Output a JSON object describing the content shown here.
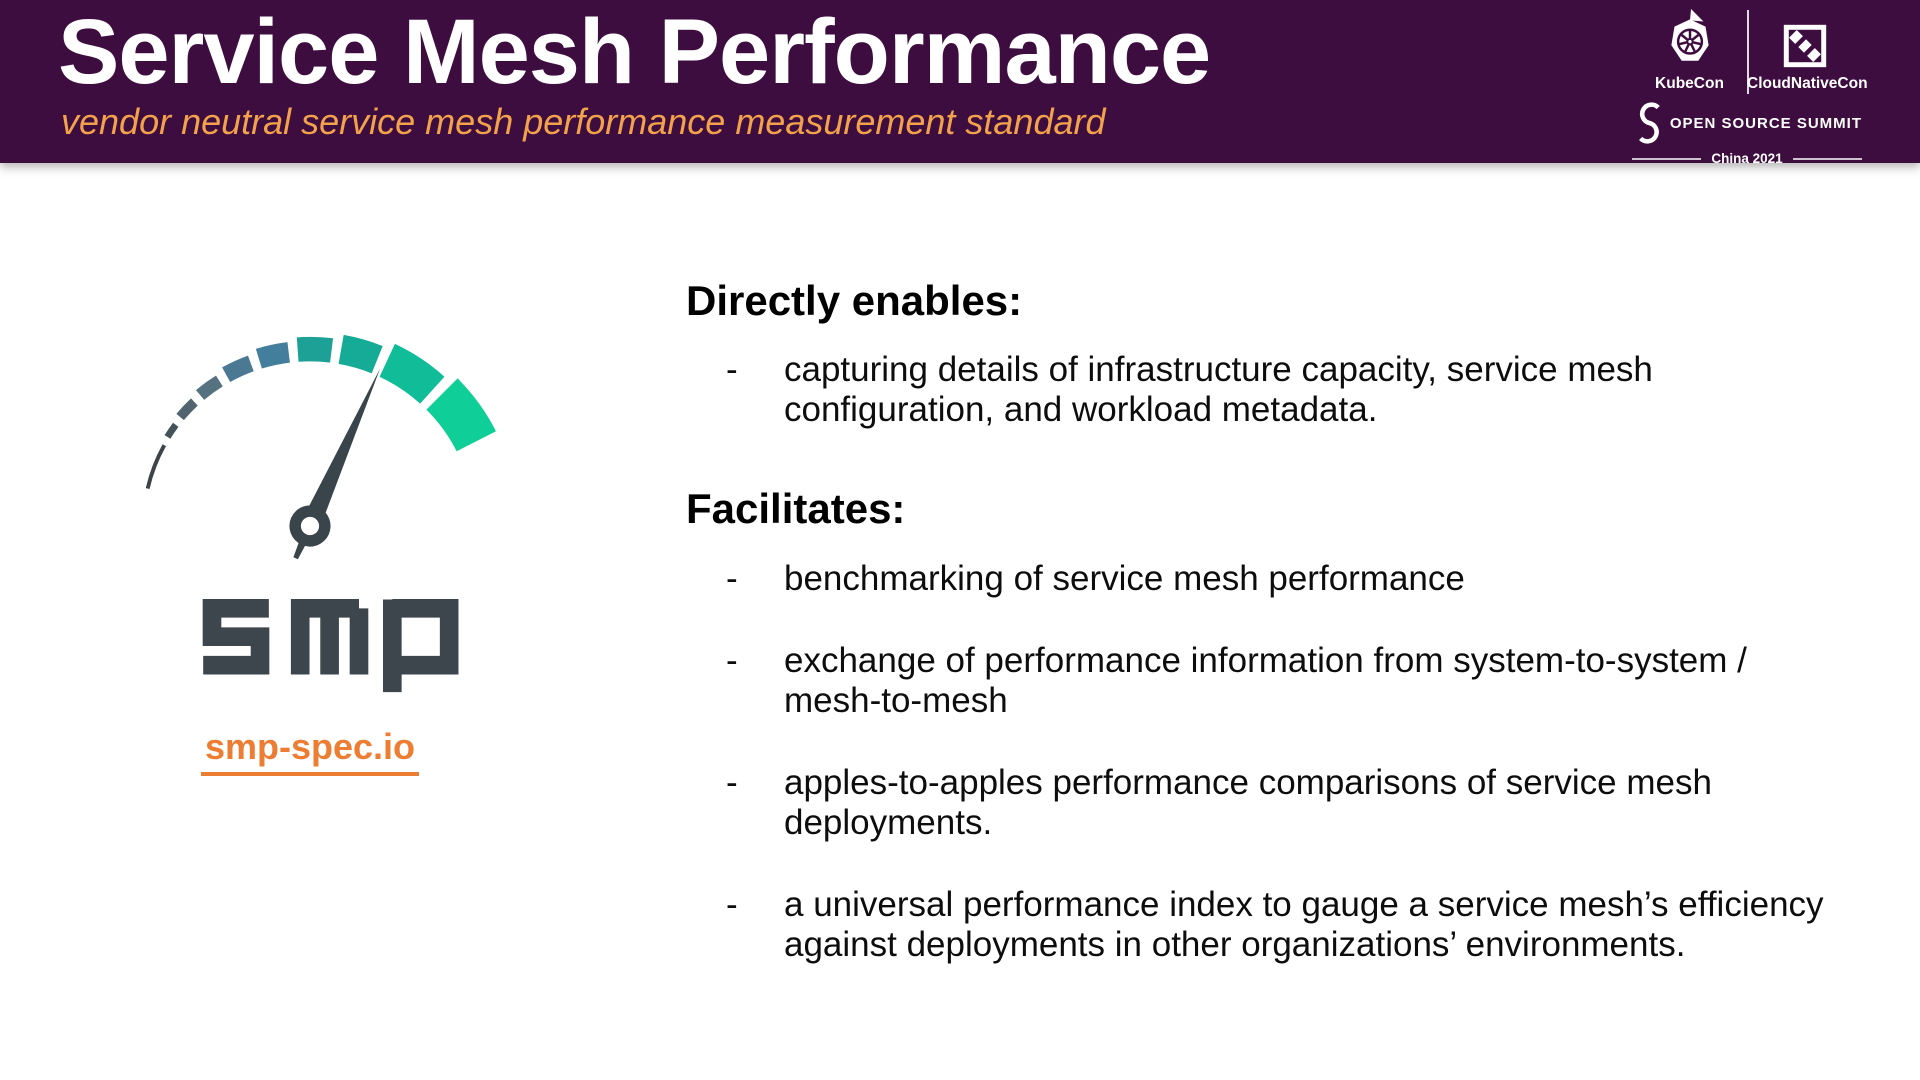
{
  "colors": {
    "header_bg": "#3e0d40",
    "header_title": "#ffffff",
    "subtitle": "#f2a24b",
    "link": "#ec7d33",
    "body_text": "#0d0d0d",
    "logo_ink": "#3a444b",
    "event_text": "#ffffff"
  },
  "header": {
    "title": "Service Mesh Performance",
    "subtitle": "vendor neutral service mesh performance measurement standard"
  },
  "event": {
    "kubecon": "KubeCon",
    "cloudnativecon": "CloudNativeCon",
    "summit": "OPEN SOURCE SUMMIT",
    "edition": "China 2021"
  },
  "logo": {
    "wordmark": "SMP",
    "link": "smp-spec.io",
    "gauge_segments": [
      {
        "from": -167,
        "to": -151,
        "thickness": 4,
        "color": "#3c4449"
      },
      {
        "from": -148,
        "to": -143,
        "thickness": 7,
        "color": "#46525a"
      },
      {
        "from": -140,
        "to": -133,
        "thickness": 10,
        "color": "#51646f"
      },
      {
        "from": -130,
        "to": -122,
        "thickness": 13,
        "color": "#56717f"
      },
      {
        "from": -119,
        "to": -110,
        "thickness": 17,
        "color": "#4b7893"
      },
      {
        "from": -107,
        "to": -97,
        "thickness": 21,
        "color": "#437f9d"
      },
      {
        "from": -94,
        "to": -83,
        "thickness": 25,
        "color": "#1da096"
      },
      {
        "from": -80,
        "to": -68,
        "thickness": 30,
        "color": "#15ab97"
      },
      {
        "from": -65,
        "to": -48,
        "thickness": 37,
        "color": "#10bd98"
      },
      {
        "from": -45,
        "to": -27,
        "thickness": 45,
        "color": "#10ce97"
      }
    ]
  },
  "bullet_marker": "-",
  "sections": [
    {
      "heading": "Directly enables:",
      "bullets": [
        "capturing details of infrastructure capacity, service mesh configuration, and workload metadata."
      ]
    },
    {
      "heading": "Facilitates:",
      "bullets": [
        "benchmarking of service mesh performance",
        "exchange of performance information from system-to-system / mesh-to-mesh",
        "apples-to-apples performance comparisons of service mesh deployments.",
        "a universal performance index to gauge a service mesh’s efficiency against deployments in other organizations’ environments."
      ]
    }
  ]
}
